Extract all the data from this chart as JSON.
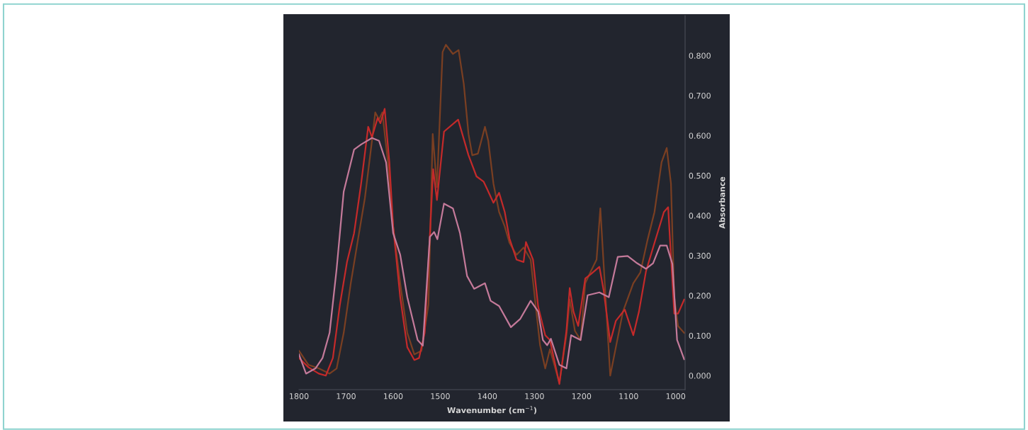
{
  "chart_data": {
    "type": "line",
    "xlabel": "Wavenumber (cm$^{−1}$)",
    "ylabel": "Absorbance",
    "xlim": [
      1800,
      980
    ],
    "xticks": [
      1800,
      1700,
      1600,
      1500,
      1400,
      1300,
      1200,
      1100,
      1000
    ],
    "ylim": [
      -0.035,
      0.9
    ],
    "yticks": [
      {
        "value": 0,
        "label": "0.000"
      },
      {
        "value": 0.1,
        "label": "0.100"
      },
      {
        "value": 0.2,
        "label": "0.200"
      },
      {
        "value": 0.3,
        "label": "0.300"
      },
      {
        "value": 0.4,
        "label": "0.400"
      },
      {
        "value": 0.5,
        "label": "0.500"
      },
      {
        "value": 0.6,
        "label": "0.600"
      },
      {
        "value": 0.7,
        "label": "0.700"
      },
      {
        "value": 0.8,
        "label": "0.800"
      }
    ],
    "grid": false,
    "legend": false,
    "marker": "none",
    "line_style": "solid",
    "series": [
      {
        "color": "#7a3f22",
        "x": [
          1800,
          1780,
          1758,
          1735,
          1720,
          1705,
          1690,
          1675,
          1660,
          1645,
          1638,
          1630,
          1623,
          1611,
          1600,
          1585,
          1570,
          1555,
          1540,
          1525,
          1516,
          1507,
          1495,
          1488,
          1473,
          1461,
          1450,
          1440,
          1432,
          1420,
          1405,
          1398,
          1387,
          1375,
          1363,
          1353,
          1338,
          1323,
          1308,
          1297,
          1288,
          1277,
          1267,
          1247,
          1232,
          1225,
          1214,
          1202,
          1192,
          1180,
          1168,
          1160,
          1139,
          1112,
          1090,
          1075,
          1060,
          1045,
          1030,
          1019,
          1010,
          1003,
          995,
          982
        ],
        "values": [
          0.062,
          0.027,
          0.018,
          0.005,
          0.018,
          0.107,
          0.231,
          0.338,
          0.444,
          0.587,
          0.658,
          0.64,
          0.658,
          0.533,
          0.373,
          0.231,
          0.107,
          0.053,
          0.062,
          0.178,
          0.604,
          0.471,
          0.809,
          0.827,
          0.804,
          0.814,
          0.729,
          0.604,
          0.551,
          0.555,
          0.622,
          0.587,
          0.48,
          0.409,
          0.373,
          0.332,
          0.302,
          0.32,
          0.29,
          0.172,
          0.076,
          0.018,
          0.066,
          -0.018,
          0.101,
          0.19,
          0.112,
          0.089,
          0.231,
          0.261,
          0.29,
          0.418,
          0.0,
          0.16,
          0.231,
          0.258,
          0.338,
          0.409,
          0.533,
          0.569,
          0.48,
          0.196,
          0.124,
          0.107
        ]
      },
      {
        "color": "#c42a2a",
        "x": [
          1800,
          1780,
          1758,
          1743,
          1728,
          1713,
          1698,
          1683,
          1668,
          1653,
          1645,
          1633,
          1627,
          1618,
          1608,
          1600,
          1585,
          1570,
          1555,
          1545,
          1533,
          1521,
          1515,
          1507,
          1492,
          1462,
          1440,
          1423,
          1408,
          1401,
          1387,
          1375,
          1363,
          1353,
          1338,
          1323,
          1318,
          1303,
          1292,
          1277,
          1267,
          1247,
          1232,
          1225,
          1217,
          1207,
          1192,
          1180,
          1162,
          1153,
          1139,
          1127,
          1108,
          1090,
          1078,
          1063,
          1048,
          1025,
          1016,
          1012,
          1003,
          995,
          982
        ],
        "values": [
          0.044,
          0.021,
          0.005,
          0.0,
          0.044,
          0.178,
          0.284,
          0.356,
          0.48,
          0.622,
          0.596,
          0.644,
          0.631,
          0.667,
          0.533,
          0.373,
          0.196,
          0.071,
          0.039,
          0.044,
          0.107,
          0.373,
          0.516,
          0.439,
          0.61,
          0.64,
          0.551,
          0.498,
          0.485,
          0.468,
          0.432,
          0.457,
          0.409,
          0.343,
          0.29,
          0.284,
          0.334,
          0.29,
          0.172,
          0.101,
          0.089,
          -0.021,
          0.112,
          0.219,
          0.16,
          0.124,
          0.243,
          0.254,
          0.272,
          0.213,
          0.084,
          0.137,
          0.165,
          0.101,
          0.16,
          0.261,
          0.32,
          0.409,
          0.421,
          0.338,
          0.155,
          0.155,
          0.19
        ]
      },
      {
        "color": "#c47a9a",
        "x": [
          1800,
          1785,
          1765,
          1750,
          1735,
          1720,
          1705,
          1683,
          1668,
          1645,
          1630,
          1615,
          1600,
          1585,
          1570,
          1548,
          1537,
          1522,
          1513,
          1506,
          1492,
          1473,
          1458,
          1443,
          1428,
          1405,
          1393,
          1375,
          1350,
          1330,
          1308,
          1292,
          1282,
          1273,
          1265,
          1247,
          1232,
          1222,
          1202,
          1187,
          1162,
          1142,
          1123,
          1102,
          1082,
          1063,
          1048,
          1033,
          1019,
          1007,
          997,
          982
        ],
        "values": [
          0.053,
          0.005,
          0.018,
          0.044,
          0.107,
          0.267,
          0.46,
          0.565,
          0.578,
          0.594,
          0.587,
          0.533,
          0.356,
          0.302,
          0.196,
          0.089,
          0.075,
          0.347,
          0.359,
          0.341,
          0.43,
          0.418,
          0.356,
          0.249,
          0.217,
          0.231,
          0.187,
          0.174,
          0.121,
          0.142,
          0.187,
          0.16,
          0.089,
          0.076,
          0.092,
          0.027,
          0.018,
          0.101,
          0.089,
          0.201,
          0.208,
          0.196,
          0.297,
          0.299,
          0.281,
          0.267,
          0.281,
          0.325,
          0.325,
          0.279,
          0.089,
          0.041
        ]
      }
    ]
  }
}
